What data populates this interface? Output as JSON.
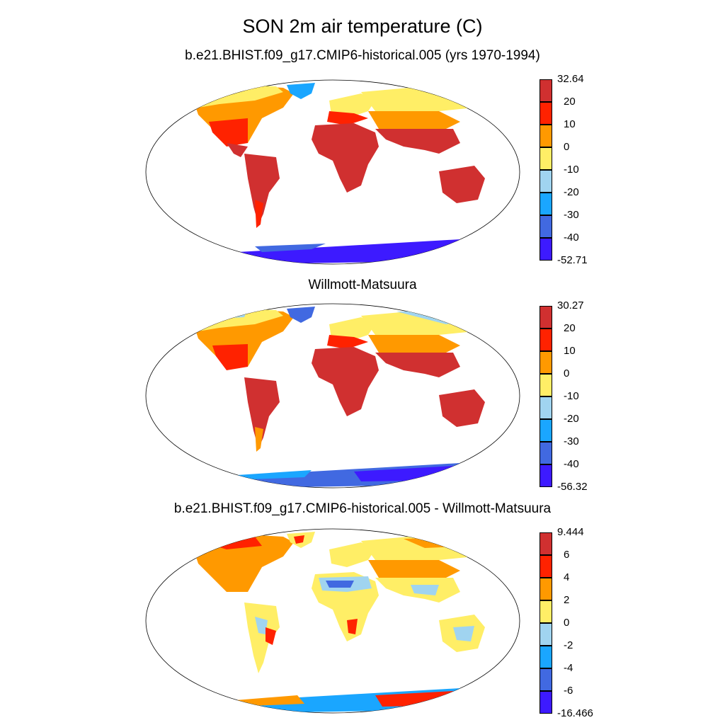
{
  "title": "SON 2m air temperature (C)",
  "panels": [
    {
      "title": "b.e21.BHIST.f09_g17.CMIP6-historical.005 (yrs 1970-1994)",
      "colorbar": {
        "labels": [
          "32.64",
          "20",
          "10",
          "0",
          "-10",
          "-20",
          "-30",
          "-40",
          "-52.71"
        ],
        "colors": [
          "#d03030",
          "#ff2200",
          "#ff9900",
          "#ffee66",
          "#a0d4f0",
          "#1aa6ff",
          "#4169e1",
          "#3d1aff"
        ]
      }
    },
    {
      "title": "Willmott-Matsuura",
      "colorbar": {
        "labels": [
          "30.27",
          "20",
          "10",
          "0",
          "-10",
          "-20",
          "-30",
          "-40",
          "-56.32"
        ],
        "colors": [
          "#d03030",
          "#ff2200",
          "#ff9900",
          "#ffee66",
          "#a0d4f0",
          "#1aa6ff",
          "#4169e1",
          "#3d1aff"
        ]
      }
    },
    {
      "title": "b.e21.BHIST.f09_g17.CMIP6-historical.005 - Willmott-Matsuura",
      "colorbar": {
        "labels": [
          "9.444",
          "6",
          "4",
          "2",
          "0",
          "-2",
          "-4",
          "-6",
          "-16.466"
        ],
        "colors": [
          "#d03030",
          "#ff2200",
          "#ff9900",
          "#ffee66",
          "#a0d4f0",
          "#1aa6ff",
          "#4169e1",
          "#3d1aff"
        ]
      }
    }
  ]
}
